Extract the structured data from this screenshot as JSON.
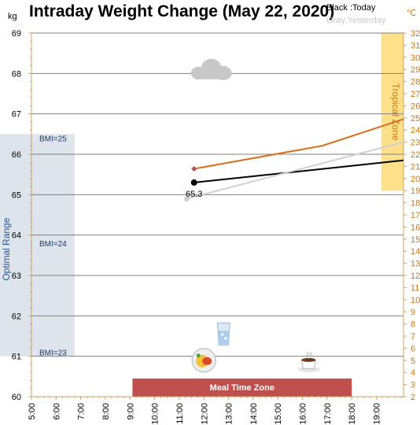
{
  "chart_data": {
    "type": "line",
    "title": "Intraday Weight Change (May 22, 2020)",
    "legend": {
      "today": "Black :Today",
      "yesterday": "Gray:Yesterday"
    },
    "y_left": {
      "unit": "kg",
      "range": [
        60,
        69
      ],
      "ticks": [
        "60",
        "61",
        "62",
        "63",
        "64",
        "65",
        "66",
        "67",
        "68",
        "69"
      ]
    },
    "y_right": {
      "unit": "℃",
      "range": [
        2,
        32
      ],
      "ticks": [
        "2",
        "3",
        "4",
        "5",
        "6",
        "7",
        "8",
        "9",
        "10",
        "11",
        "12",
        "13",
        "14",
        "15",
        "16",
        "17",
        "18",
        "19",
        "20",
        "21",
        "22",
        "23",
        "24",
        "25",
        "26",
        "27",
        "28",
        "29",
        "30",
        "31",
        "32"
      ]
    },
    "x_axis": {
      "range": [
        5,
        20.1
      ],
      "ticks": [
        "5:00",
        "6:00",
        "7:00",
        "8:00",
        "9:00",
        "10:00",
        "11:00",
        "12:00",
        "13:00",
        "14:00",
        "15:00",
        "16:00",
        "17:00",
        "18:00",
        "19:00"
      ]
    },
    "grid": true,
    "series": [
      {
        "name": "Today",
        "axis": "left",
        "color": "#000000",
        "points": [
          [
            11.6,
            65.3
          ],
          [
            20.1,
            65.85
          ]
        ],
        "point_label": "65.3"
      },
      {
        "name": "Yesterday",
        "axis": "left",
        "color": "#d0d0d0",
        "points": [
          [
            11.3,
            64.9
          ],
          [
            20.1,
            66.3
          ]
        ]
      },
      {
        "name": "Temperature",
        "axis": "right",
        "color": "#d9701f",
        "points": [
          [
            11.6,
            20.8
          ],
          [
            16.8,
            22.7
          ],
          [
            20.1,
            24.9
          ]
        ]
      }
    ],
    "bands": [
      {
        "label": "Optimal Range",
        "axis": "left",
        "y": [
          61,
          66.5
        ],
        "x": [
          5,
          6.75
        ],
        "color": "#dde4ec",
        "text_color": "#2f5597"
      },
      {
        "label": "Tropical Zone",
        "axis": "right",
        "y": [
          19,
          32
        ],
        "x": [
          19.2,
          20.1
        ],
        "color": "#ffe08a",
        "text_color": "#c87a14"
      },
      {
        "label": "Meal Time Zone",
        "axis": "left",
        "y": [
          60,
          60.45
        ],
        "x": [
          9.1,
          18.0
        ],
        "color": "#c0504d",
        "text_color": "#ffffff"
      }
    ],
    "bmi_labels": [
      {
        "text": "BMI=25",
        "y": 66.4
      },
      {
        "text": "BMI=24",
        "y": 63.8
      },
      {
        "text": "BMI=23",
        "y": 61.1
      }
    ],
    "icons": [
      {
        "name": "cloud-icon",
        "x": 12.3,
        "y": 68.05
      },
      {
        "name": "water-glass-icon",
        "x": 12.8,
        "y": 61.55
      },
      {
        "name": "meal-plate-icon",
        "x": 12.0,
        "y": 60.9
      },
      {
        "name": "coffee-cup-icon",
        "x": 16.25,
        "y": 60.85
      }
    ]
  }
}
